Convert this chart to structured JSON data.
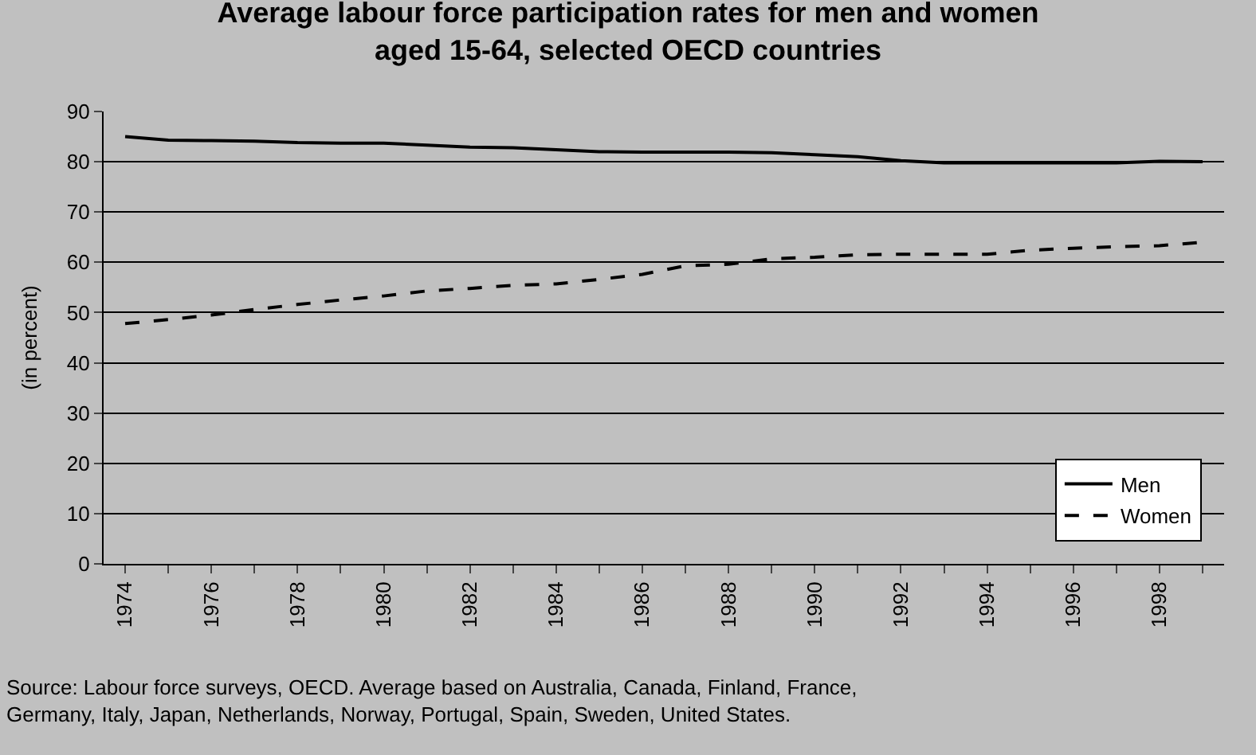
{
  "chart_data": {
    "type": "line",
    "title": "Average labour force participation rates for men and women\naged 15-64, selected OECD countries",
    "ylabel": "(in percent)",
    "categories": [
      "1974",
      null,
      "1976",
      null,
      "1978",
      null,
      "1980",
      null,
      "1982",
      null,
      "1984",
      null,
      "1986",
      null,
      "1988",
      null,
      "1990",
      null,
      "1992",
      null,
      "1994",
      null,
      "1996",
      null,
      "1998",
      null
    ],
    "series": [
      {
        "name": "Men",
        "color": "#000000",
        "line_style": "solid",
        "values": [
          85,
          84.3,
          84.2,
          84.1,
          83.8,
          83.7,
          83.7,
          83.3,
          82.9,
          82.8,
          82.4,
          82,
          81.9,
          81.9,
          81.9,
          81.8,
          81.4,
          81,
          80.2,
          79.8,
          79.8,
          79.8,
          79.8,
          79.8,
          80.1,
          80
        ]
      },
      {
        "name": "Women",
        "color": "#000000",
        "line_style": "dashed",
        "values": [
          47.8,
          48.6,
          49.5,
          50.6,
          51.6,
          52.5,
          53.3,
          54.3,
          54.8,
          55.4,
          55.7,
          56.6,
          57.6,
          59.3,
          59.6,
          60.7,
          61.0,
          61.5,
          61.6,
          61.6,
          61.6,
          62.4,
          62.8,
          63.1,
          63.3,
          64.0
        ]
      }
    ],
    "ylim": [
      0,
      90
    ],
    "yticks": [
      0,
      10,
      20,
      30,
      40,
      50,
      60,
      70,
      80,
      90
    ],
    "grid": "y",
    "legend": "bottom right",
    "marker": "none",
    "annotations": [
      "Source: Labour force surveys, OECD. Average based on Australia, Canada, Finland, France,\nGermany, Italy, Japan, Netherlands, Norway, Portugal, Spain, Sweden, United States."
    ]
  }
}
